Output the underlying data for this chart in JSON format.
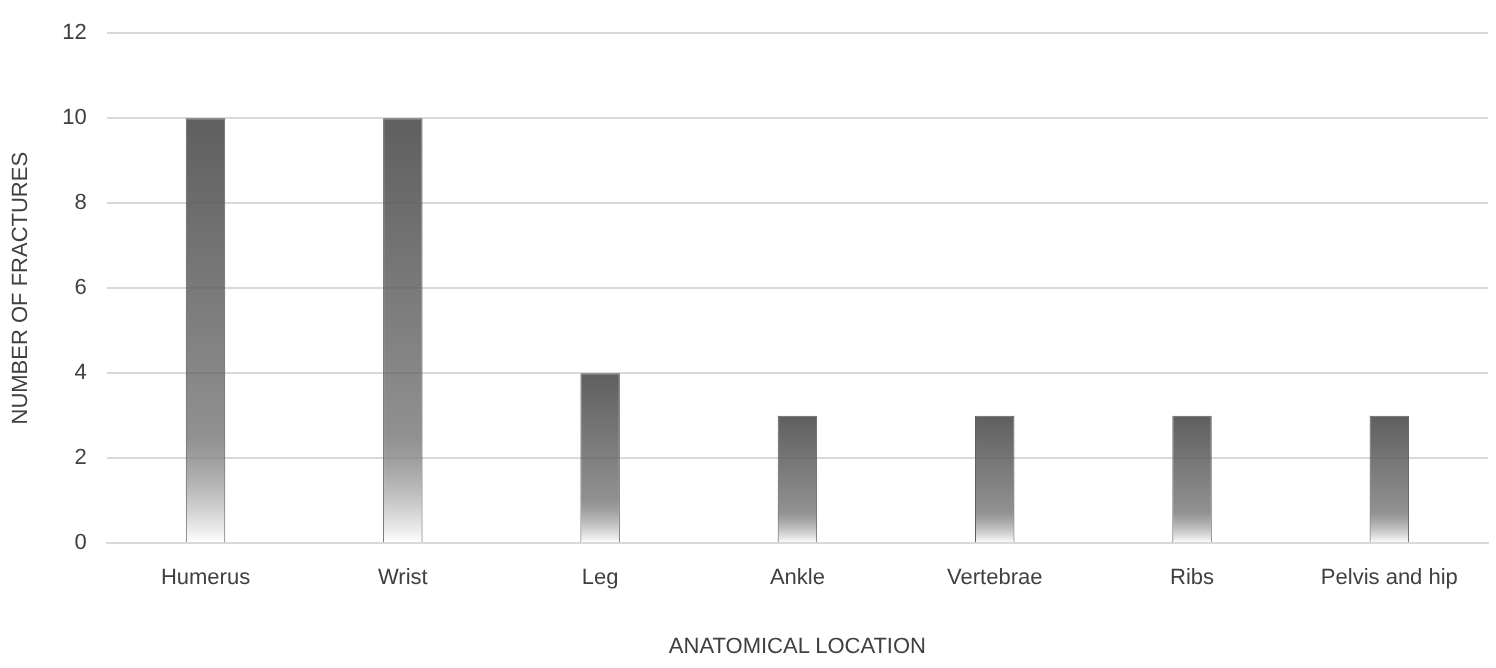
{
  "chart_data": {
    "type": "bar",
    "xlabel": "ANATOMICAL LOCATION",
    "ylabel": "NUMBER OF FRACTURES",
    "categories": [
      "Humerus",
      "Wrist",
      "Leg",
      "Ankle",
      "Vertebrae",
      "Ribs",
      "Pelvis and hip"
    ],
    "values": [
      10,
      10,
      4,
      3,
      3,
      3,
      3
    ],
    "color": "#5f5f5f",
    "ylim": [
      0,
      12
    ],
    "yticks": [
      0,
      2,
      4,
      6,
      8,
      10,
      12
    ],
    "grid": "y"
  }
}
